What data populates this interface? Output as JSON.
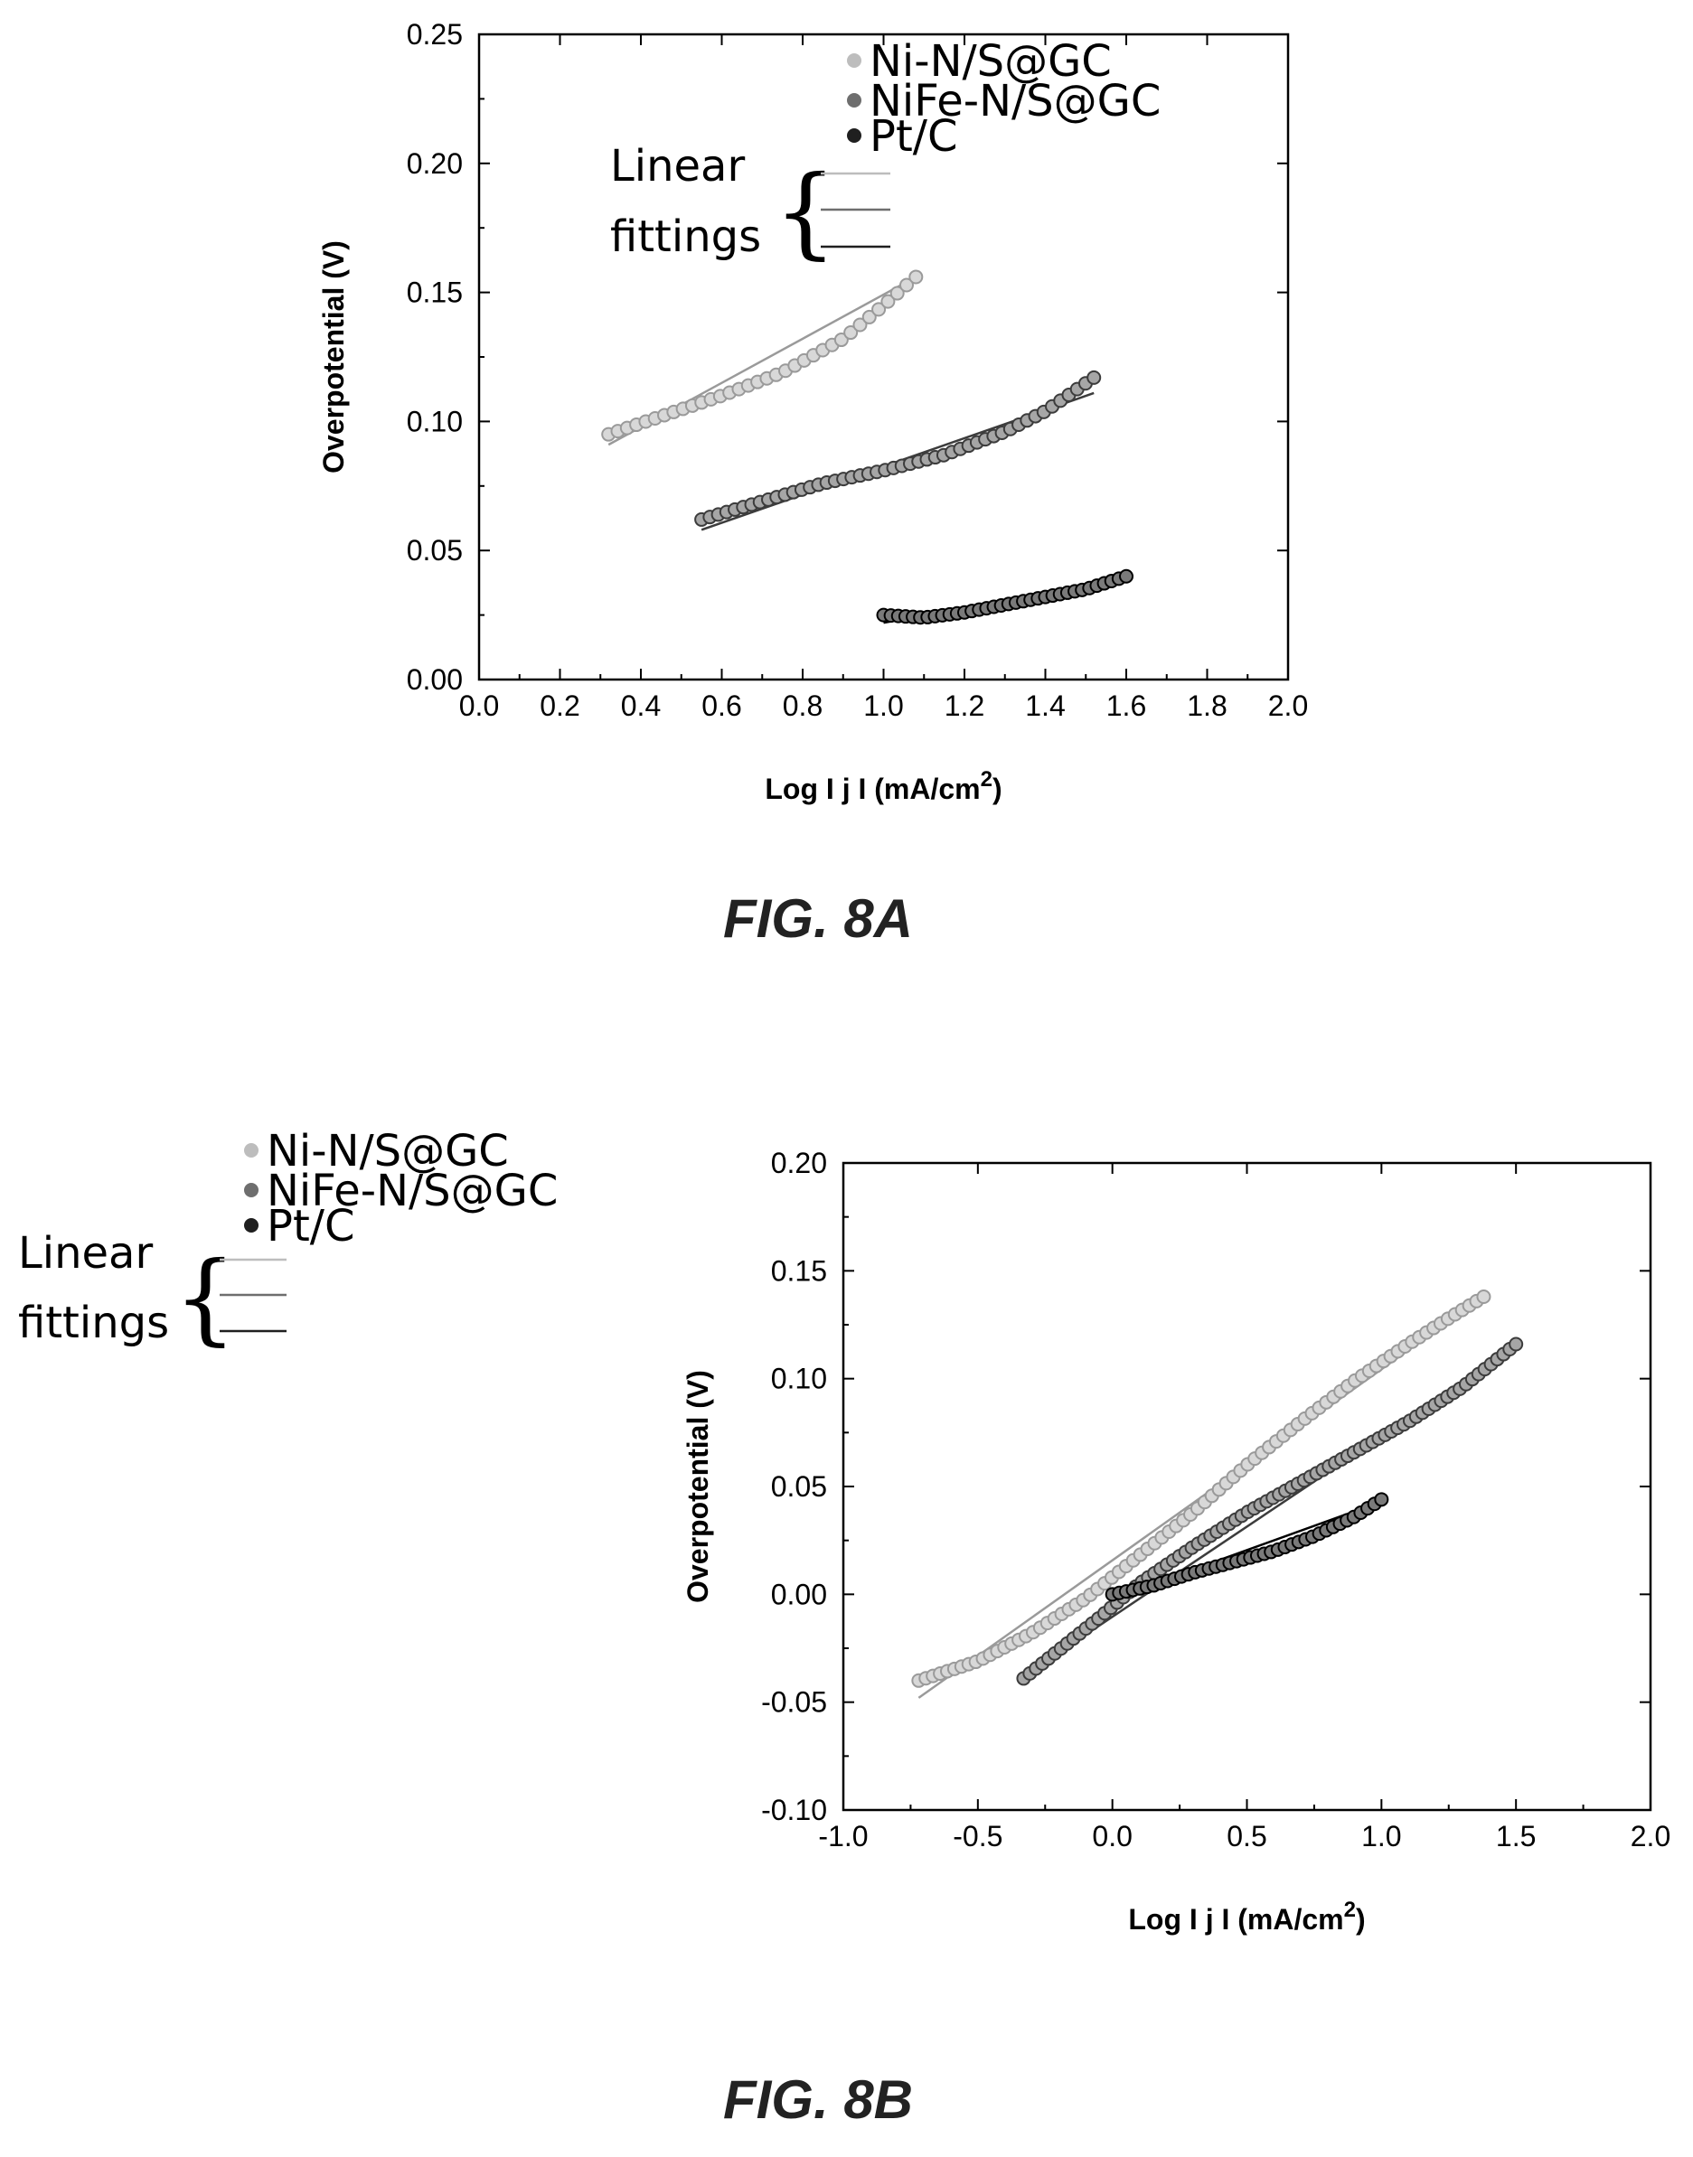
{
  "figures": [
    {
      "label": "FIG. 8A"
    },
    {
      "label": "FIG. 8B"
    }
  ],
  "legend": {
    "series": [
      "Ni-N/S@GC",
      "NiFe-N/S@GC",
      "Pt/C"
    ],
    "fit_label_line1": "Linear",
    "fit_label_line2": "fittings",
    "colors": {
      "Ni-N/S@GC": "#bdbdbd",
      "NiFe-N/S@GC": "#6e6e6e",
      "Pt/C": "#1f1f1f"
    }
  },
  "chart_data": [
    {
      "type": "scatter",
      "title": "",
      "xlabel": "Log I j I (mA/cm",
      "xlabel_superscript": "2",
      "xlabel_close": ")",
      "ylabel": "Overpotential (V)",
      "xlim": [
        0.0,
        2.0
      ],
      "ylim": [
        0.0,
        0.25
      ],
      "x_ticks": [
        "0.0",
        "0.2",
        "0.4",
        "0.6",
        "0.8",
        "1.0",
        "1.2",
        "1.4",
        "1.6",
        "1.8",
        "2.0"
      ],
      "y_ticks": [
        "0.00",
        "0.05",
        "0.10",
        "0.15",
        "0.20",
        "0.25"
      ],
      "legend_position": "top-right",
      "series": [
        {
          "name": "Ni-N/S@GC",
          "x_range": [
            0.32,
            1.08
          ],
          "n": 34,
          "points": [
            [
              0.32,
              0.095
            ],
            [
              0.45,
              0.102
            ],
            [
              0.6,
              0.11
            ],
            [
              0.75,
              0.119
            ],
            [
              0.9,
              0.132
            ],
            [
              1.0,
              0.145
            ],
            [
              1.08,
              0.156
            ]
          ],
          "fit": [
            [
              0.32,
              0.091
            ],
            [
              1.08,
              0.156
            ]
          ]
        },
        {
          "name": "NiFe-N/S@GC",
          "x_range": [
            0.55,
            1.52
          ],
          "n": 48,
          "points": [
            [
              0.55,
              0.062
            ],
            [
              0.7,
              0.069
            ],
            [
              0.85,
              0.076
            ],
            [
              1.0,
              0.081
            ],
            [
              1.15,
              0.087
            ],
            [
              1.3,
              0.096
            ],
            [
              1.4,
              0.104
            ],
            [
              1.52,
              0.117
            ]
          ],
          "fit": [
            [
              0.55,
              0.058
            ],
            [
              1.52,
              0.111
            ]
          ]
        },
        {
          "name": "Pt/C",
          "x_range": [
            1.0,
            1.6
          ],
          "n": 34,
          "points": [
            [
              1.0,
              0.025
            ],
            [
              1.1,
              0.024
            ],
            [
              1.2,
              0.026
            ],
            [
              1.3,
              0.029
            ],
            [
              1.4,
              0.032
            ],
            [
              1.5,
              0.035
            ],
            [
              1.6,
              0.04
            ]
          ],
          "fit": [
            [
              1.0,
              0.022
            ],
            [
              1.6,
              0.039
            ]
          ]
        }
      ]
    },
    {
      "type": "scatter",
      "title": "",
      "xlabel": "Log I j I (mA/cm",
      "xlabel_superscript": "2",
      "xlabel_close": ")",
      "ylabel": "Overpotential (V)",
      "xlim": [
        -1.0,
        2.0
      ],
      "ylim": [
        -0.1,
        0.2
      ],
      "x_ticks": [
        "-1.0",
        "-0.5",
        "0.0",
        "0.5",
        "1.0",
        "1.5",
        "2.0"
      ],
      "y_ticks": [
        "-0.10",
        "-0.05",
        "0.00",
        "0.05",
        "0.10",
        "0.15",
        "0.20"
      ],
      "legend_position": "outside-left",
      "series": [
        {
          "name": "Ni-N/S@GC",
          "x_range": [
            -0.72,
            1.38
          ],
          "n": 80,
          "points": [
            [
              -0.72,
              -0.04
            ],
            [
              -0.5,
              -0.031
            ],
            [
              -0.3,
              -0.018
            ],
            [
              -0.1,
              -0.002
            ],
            [
              0.1,
              0.018
            ],
            [
              0.3,
              0.038
            ],
            [
              0.5,
              0.06
            ],
            [
              0.7,
              0.08
            ],
            [
              0.9,
              0.099
            ],
            [
              1.1,
              0.116
            ],
            [
              1.25,
              0.128
            ],
            [
              1.38,
              0.138
            ]
          ],
          "fit": [
            [
              -0.72,
              -0.048
            ],
            [
              1.38,
              0.138
            ]
          ]
        },
        {
          "name": "NiFe-N/S@GC",
          "x_range": [
            -0.33,
            1.5
          ],
          "n": 80,
          "points": [
            [
              -0.33,
              -0.039
            ],
            [
              -0.2,
              -0.026
            ],
            [
              -0.05,
              -0.011
            ],
            [
              0.1,
              0.005
            ],
            [
              0.3,
              0.022
            ],
            [
              0.5,
              0.038
            ],
            [
              0.7,
              0.052
            ],
            [
              0.9,
              0.066
            ],
            [
              1.1,
              0.08
            ],
            [
              1.3,
              0.096
            ],
            [
              1.5,
              0.116
            ]
          ],
          "fit": [
            [
              -0.33,
              -0.038
            ],
            [
              1.5,
              0.115
            ]
          ]
        },
        {
          "name": "Pt/C",
          "x_range": [
            0.0,
            1.0
          ],
          "n": 40,
          "points": [
            [
              0.0,
              0.0
            ],
            [
              0.15,
              0.004
            ],
            [
              0.3,
              0.01
            ],
            [
              0.45,
              0.015
            ],
            [
              0.6,
              0.02
            ],
            [
              0.75,
              0.027
            ],
            [
              0.9,
              0.036
            ],
            [
              1.0,
              0.044
            ]
          ],
          "fit": [
            [
              0.0,
              -0.002
            ],
            [
              1.0,
              0.043
            ]
          ]
        }
      ]
    }
  ]
}
